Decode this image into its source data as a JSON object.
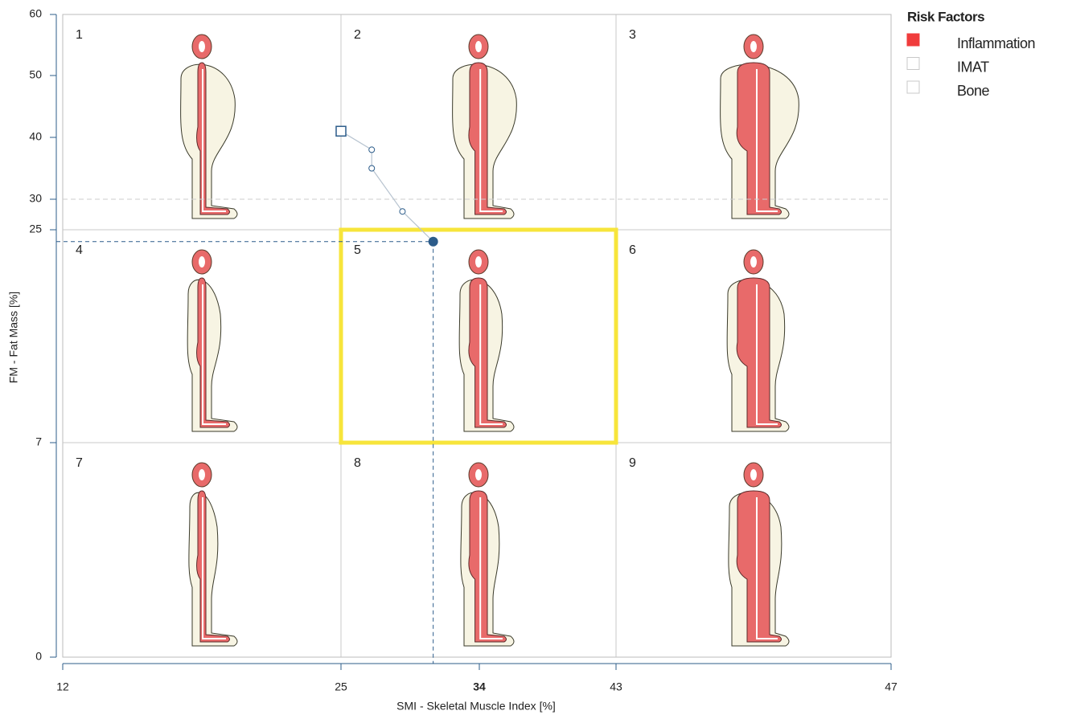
{
  "chart_data": {
    "type": "scatter",
    "xlabel": "SMI - Skeletal Muscle Index [%]",
    "ylabel": "FM - Fat Mass [%]",
    "x": [
      25,
      27,
      27,
      29,
      31
    ],
    "values": [
      41,
      38,
      35,
      28,
      24
    ],
    "color": "#2c5c8a",
    "xlim": [
      12,
      47
    ],
    "xticks": [
      12,
      25,
      34,
      43,
      47
    ],
    "ylim": [
      0,
      60
    ],
    "yticks": [
      0,
      7,
      25,
      30,
      40,
      50,
      60
    ],
    "grid": true,
    "cells": [
      "1",
      "2",
      "3",
      "4",
      "5",
      "6",
      "7",
      "8",
      "9"
    ],
    "legend": {
      "title": "Risk Factors",
      "position": "upper right",
      "items": [
        {
          "name": "Inflammation",
          "active": true,
          "color": "#f03c3c"
        },
        {
          "name": "IMAT",
          "active": false,
          "color": "#f03c3c"
        },
        {
          "name": "Bone",
          "active": false,
          "color": "#f03c3c"
        }
      ]
    }
  }
}
